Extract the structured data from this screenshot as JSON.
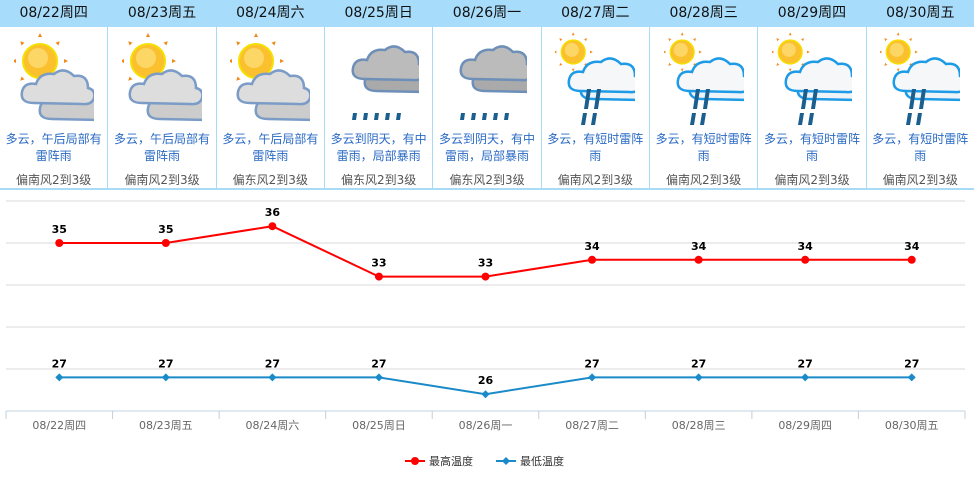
{
  "days": [
    {
      "date": "08/22周四",
      "icon": "partly-cloudy-icon",
      "desc": "多云，午后局部有雷阵雨",
      "wind": "偏南风2到3级"
    },
    {
      "date": "08/23周五",
      "icon": "partly-cloudy-icon",
      "desc": "多云，午后局部有雷阵雨",
      "wind": "偏南风2到3级"
    },
    {
      "date": "08/24周六",
      "icon": "partly-cloudy-icon",
      "desc": "多云，午后局部有雷阵雨",
      "wind": "偏东风2到3级"
    },
    {
      "date": "08/25周日",
      "icon": "cloudy-rain-icon",
      "desc": "多云到阴天，有中雷雨，局部暴雨",
      "wind": "偏东风2到3级"
    },
    {
      "date": "08/26周一",
      "icon": "cloudy-rain-icon",
      "desc": "多云到阴天，有中雷雨，局部暴雨",
      "wind": "偏东风2到3级"
    },
    {
      "date": "08/27周二",
      "icon": "thunder-shower-icon",
      "desc": "多云，有短时雷阵雨",
      "wind": "偏南风2到3级"
    },
    {
      "date": "08/28周三",
      "icon": "thunder-shower-icon",
      "desc": "多云，有短时雷阵雨",
      "wind": "偏南风2到3级"
    },
    {
      "date": "08/29周四",
      "icon": "thunder-shower-icon",
      "desc": "多云，有短时雷阵雨",
      "wind": "偏南风2到3级"
    },
    {
      "date": "08/30周五",
      "icon": "thunder-shower-icon",
      "desc": "多云，有短时雷阵雨",
      "wind": "偏南风2到3级"
    }
  ],
  "chart_data": {
    "type": "line",
    "categories": [
      "08/22周四",
      "08/23周五",
      "08/24周六",
      "08/25周日",
      "08/26周一",
      "08/27周二",
      "08/28周三",
      "08/29周四",
      "08/30周五"
    ],
    "series": [
      {
        "name": "最高温度",
        "color": "#ff0000",
        "values": [
          35,
          35,
          36,
          33,
          33,
          34,
          34,
          34,
          34
        ]
      },
      {
        "name": "最低温度",
        "color": "#1a8ac8",
        "values": [
          27,
          27,
          27,
          27,
          26,
          27,
          27,
          27,
          27
        ]
      }
    ],
    "ylim": [
      25,
      37.5
    ],
    "grid": true,
    "legend": "bottom-center"
  }
}
